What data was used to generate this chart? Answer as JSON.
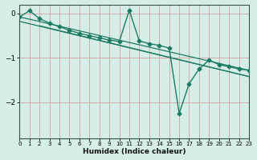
{
  "xlabel": "Humidex (Indice chaleur)",
  "bg_color": "#d5eee8",
  "line_color": "#1e7a64",
  "grid_color": "#d4a0a0",
  "xlim": [
    0,
    23
  ],
  "ylim": [
    -2.8,
    0.2
  ],
  "yticks": [
    0,
    -1,
    -2
  ],
  "xticks": [
    0,
    1,
    2,
    3,
    4,
    5,
    6,
    7,
    8,
    9,
    10,
    11,
    12,
    13,
    14,
    15,
    16,
    17,
    18,
    19,
    20,
    21,
    22,
    23
  ],
  "curve_x": [
    0,
    1,
    2,
    3,
    4,
    5,
    6,
    7,
    8,
    9,
    10,
    11,
    12,
    13,
    14,
    15,
    16,
    17,
    18,
    19,
    20,
    21,
    22,
    23
  ],
  "curve_y": [
    -0.08,
    0.06,
    -0.12,
    -0.22,
    -0.3,
    -0.38,
    -0.45,
    -0.5,
    -0.55,
    -0.6,
    -0.63,
    0.07,
    -0.62,
    -0.68,
    -0.72,
    -0.78,
    -2.25,
    -1.58,
    -1.25,
    -1.05,
    -1.15,
    -1.2,
    -1.25,
    -1.28
  ],
  "line1_x": [
    0,
    23
  ],
  "line1_y": [
    -0.08,
    -1.28
  ],
  "line2_x": [
    0,
    23
  ],
  "line2_y": [
    -0.18,
    -1.42
  ],
  "line3_x": [
    2,
    23
  ],
  "line3_y": [
    -0.28,
    -1.42
  ]
}
